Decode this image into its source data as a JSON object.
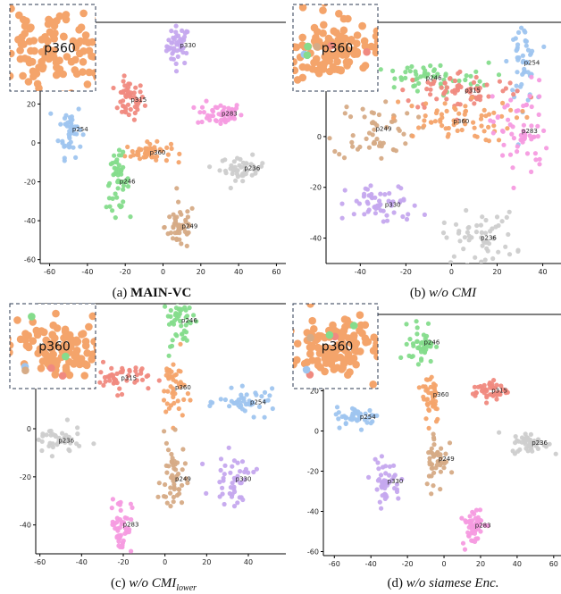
{
  "colors": {
    "p360": "#f4a46b",
    "p330": "#c5a8ee",
    "p315": "#f08a80",
    "p283": "#f59be0",
    "p254": "#9fc5ef",
    "p249": "#d6ab86",
    "p246": "#85dc8c",
    "p236": "#cdcdcd"
  },
  "chart_data": [
    {
      "type": "scatter",
      "caption_prefix": "(a) ",
      "caption_main": "MAIN-VC",
      "caption_style": "bold",
      "xlim": [
        -65,
        65
      ],
      "ylim": [
        -62,
        62
      ],
      "xticks": [
        -60,
        -40,
        -20,
        0,
        20,
        40,
        60
      ],
      "yticks": [
        -60,
        -40,
        -20,
        0,
        20
      ],
      "inset_label": "p360",
      "clusters": [
        {
          "name": "p330",
          "x": 8,
          "y": 50,
          "sx": 3,
          "sy": 5,
          "n": 45
        },
        {
          "name": "p315",
          "x": -18,
          "y": 22,
          "sx": 4,
          "sy": 5,
          "n": 50
        },
        {
          "name": "p283",
          "x": 30,
          "y": 15,
          "sx": 6,
          "sy": 3,
          "n": 50
        },
        {
          "name": "p254",
          "x": -49,
          "y": 7,
          "sx": 3,
          "sy": 7,
          "n": 45
        },
        {
          "name": "p360",
          "x": -8,
          "y": -5,
          "sx": 6,
          "sy": 2.5,
          "n": 50
        },
        {
          "name": "p236",
          "x": 42,
          "y": -13,
          "sx": 6,
          "sy": 3,
          "n": 45
        },
        {
          "name": "p246",
          "x": -24,
          "y": -20,
          "sx": 3,
          "sy": 7,
          "n": 50
        },
        {
          "name": "p249",
          "x": 9,
          "y": -43,
          "sx": 4,
          "sy": 6,
          "n": 50
        }
      ]
    },
    {
      "type": "scatter",
      "caption_prefix": "(b) ",
      "caption_main": "w/o CMI",
      "caption_style": "italic",
      "xlim": [
        -55,
        48
      ],
      "ylim": [
        -50,
        45
      ],
      "xticks": [
        -40,
        -20,
        0,
        20,
        40
      ],
      "yticks": [
        -40,
        -20,
        0,
        20
      ],
      "inset_label": "p360",
      "clusters": [
        {
          "name": "p254",
          "x": 31,
          "y": 29,
          "sx": 3,
          "sy": 8,
          "n": 50
        },
        {
          "name": "p246",
          "x": -12,
          "y": 23,
          "sx": 14,
          "sy": 3,
          "n": 60
        },
        {
          "name": "p315",
          "x": 5,
          "y": 18,
          "sx": 14,
          "sy": 4,
          "n": 70
        },
        {
          "name": "p249",
          "x": -34,
          "y": 3,
          "sx": 9,
          "sy": 6,
          "n": 55
        },
        {
          "name": "p360",
          "x": 0,
          "y": 6,
          "sx": 14,
          "sy": 4,
          "n": 65
        },
        {
          "name": "p283",
          "x": 30,
          "y": 2,
          "sx": 6,
          "sy": 10,
          "n": 60
        },
        {
          "name": "p330",
          "x": -30,
          "y": -27,
          "sx": 8,
          "sy": 4,
          "n": 55
        },
        {
          "name": "p236",
          "x": 12,
          "y": -40,
          "sx": 8,
          "sy": 5,
          "n": 55
        }
      ]
    },
    {
      "type": "scatter",
      "caption_prefix": "(c) ",
      "caption_main": "w/o CMI",
      "caption_sub": "lower",
      "caption_style": "italic",
      "xlim": [
        -62,
        58
      ],
      "ylim": [
        -52,
        52
      ],
      "xticks": [
        -60,
        -40,
        -20,
        0,
        20,
        40
      ],
      "yticks": [
        -40,
        -20,
        0,
        20
      ],
      "inset_label": "p360",
      "clusters": [
        {
          "name": "p246",
          "x": 7,
          "y": 45,
          "sx": 4,
          "sy": 5,
          "n": 50
        },
        {
          "name": "p315",
          "x": -22,
          "y": 21,
          "sx": 7,
          "sy": 3,
          "n": 50
        },
        {
          "name": "p360",
          "x": 4,
          "y": 17,
          "sx": 3,
          "sy": 7,
          "n": 45
        },
        {
          "name": "p254",
          "x": 40,
          "y": 11,
          "sx": 7,
          "sy": 2.5,
          "n": 45
        },
        {
          "name": "p236",
          "x": -52,
          "y": -5,
          "sx": 6,
          "sy": 3,
          "n": 40
        },
        {
          "name": "p249",
          "x": 4,
          "y": -21,
          "sx": 3,
          "sy": 8,
          "n": 50
        },
        {
          "name": "p330",
          "x": 33,
          "y": -21,
          "sx": 5,
          "sy": 5,
          "n": 45
        },
        {
          "name": "p283",
          "x": -21,
          "y": -40,
          "sx": 2.5,
          "sy": 6,
          "n": 50
        }
      ]
    },
    {
      "type": "scatter",
      "caption_prefix": "(d) ",
      "caption_main": "w/o siamese Enc.",
      "caption_style": "italic",
      "xlim": [
        -66,
        64
      ],
      "ylim": [
        -62,
        58
      ],
      "xticks": [
        -60,
        -40,
        -20,
        0,
        20,
        40,
        60
      ],
      "yticks": [
        -60,
        -40,
        -20,
        0,
        20
      ],
      "inset_label": "p360",
      "clusters": [
        {
          "name": "p246",
          "x": -12,
          "y": 44,
          "sx": 3.5,
          "sy": 5,
          "n": 45
        },
        {
          "name": "p315",
          "x": 25,
          "y": 20,
          "sx": 5,
          "sy": 2.5,
          "n": 45
        },
        {
          "name": "p360",
          "x": -7,
          "y": 18,
          "sx": 2.5,
          "sy": 7,
          "n": 45
        },
        {
          "name": "p254",
          "x": -47,
          "y": 7,
          "sx": 6,
          "sy": 2.5,
          "n": 45
        },
        {
          "name": "p236",
          "x": 47,
          "y": -6,
          "sx": 5,
          "sy": 2.5,
          "n": 45
        },
        {
          "name": "p249",
          "x": -4,
          "y": -14,
          "sx": 3,
          "sy": 8,
          "n": 45
        },
        {
          "name": "p330",
          "x": -32,
          "y": -25,
          "sx": 4,
          "sy": 5,
          "n": 45
        },
        {
          "name": "p283",
          "x": 16,
          "y": -47,
          "sx": 3,
          "sy": 5,
          "n": 50
        }
      ]
    }
  ]
}
